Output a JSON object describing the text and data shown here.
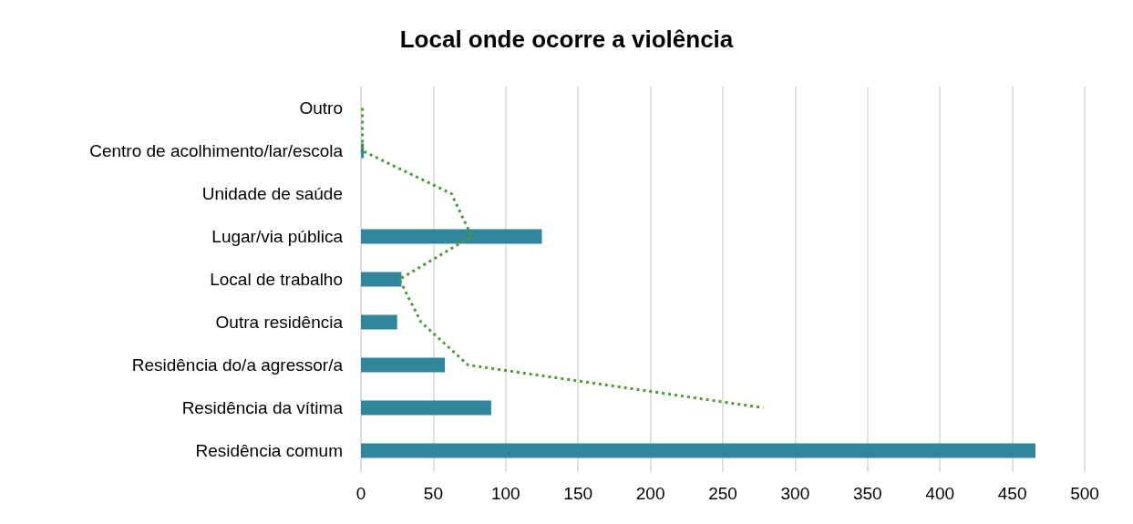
{
  "chart_data": {
    "type": "bar",
    "title": "Local onde ocorre a violência",
    "orientation": "horizontal",
    "categories": [
      "Outro",
      "Centro de acolhimento/lar/escola",
      "Unidade de saúde",
      "Lugar/via pública",
      "Local de trabalho",
      "Outra residência",
      "Residência do/a agressor/a",
      "Residência da vítima",
      "Residência comum"
    ],
    "series": [
      {
        "color": "#31869b",
        "values": [
          0,
          2,
          0,
          125,
          28,
          25,
          58,
          90,
          466
        ]
      },
      {
        "type": "line",
        "color": "#4e9a34",
        "line_style": "dotted",
        "marker": "none",
        "values": [
          1,
          1,
          62.5,
          76.5,
          26.5,
          41.5,
          74,
          278,
          null
        ]
      }
    ],
    "xlim": [
      0,
      500
    ],
    "xticks": [
      0,
      50,
      100,
      150,
      200,
      250,
      300,
      350,
      400,
      450,
      500
    ],
    "grid": "x"
  }
}
